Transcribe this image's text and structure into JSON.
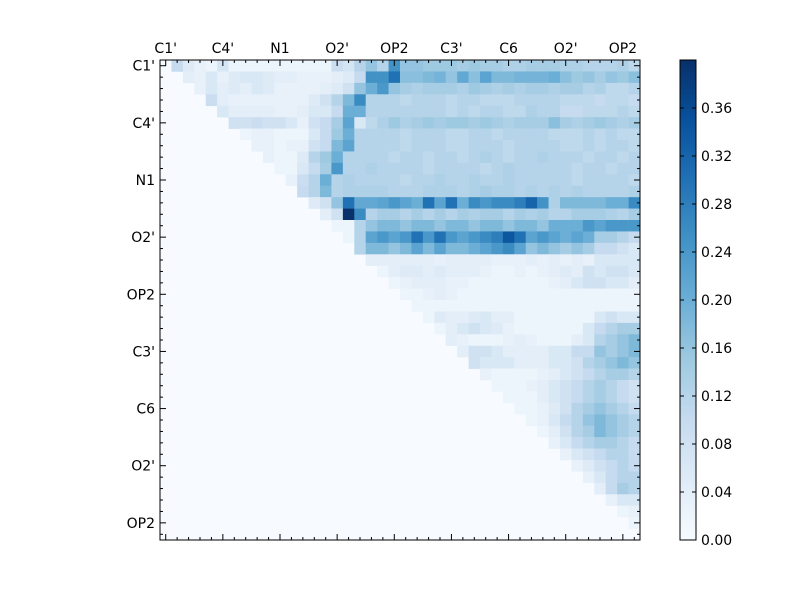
{
  "chart_data": {
    "type": "heatmap",
    "title": "",
    "xlabel": "",
    "ylabel": "",
    "n": 42,
    "x_tick_labels": [
      "C1'",
      "C4'",
      "N1",
      "O2'",
      "OP2",
      "C3'",
      "C6",
      "O2'",
      "OP2"
    ],
    "y_tick_labels": [
      "C1'",
      "C4'",
      "N1",
      "O2'",
      "OP2",
      "C3'",
      "C6",
      "O2'",
      "OP2"
    ],
    "major_tick_index": [
      0.5,
      5.5,
      10.5,
      15.5,
      20.5,
      25.5,
      30.5,
      35.5,
      40.5
    ],
    "x_ticks_position": "top",
    "colormap": "Blues",
    "colorbar": {
      "vmin": 0.0,
      "vmax": 0.4,
      "tick_labels": [
        "0.00",
        "0.04",
        "0.08",
        "0.12",
        "0.16",
        "0.20",
        "0.24",
        "0.28",
        "0.32",
        "0.36"
      ],
      "tick_values": [
        0.0,
        0.04,
        0.08,
        0.12,
        0.16,
        0.2,
        0.24,
        0.28,
        0.32,
        0.36
      ]
    },
    "values_note_unused": null,
    "cells": [
      [
        1,
        [
          0.1,
          0.05,
          0.03,
          0.02,
          0.07,
          0.02,
          0.02,
          0.02,
          0.02,
          0.02,
          0.02,
          0.02,
          0.02,
          0.02,
          0.09,
          0.07,
          0.12,
          0.16,
          0.12,
          0.25,
          0.16,
          0.16,
          0.15,
          0.15,
          0.15,
          0.14,
          0.15,
          0.14,
          0.14,
          0.13,
          0.13,
          0.14,
          0.14,
          0.14,
          0.13,
          0.13,
          0.12,
          0.12,
          0.12,
          0.13,
          0.11
        ]
      ],
      [
        2,
        [
          0.04,
          0.03,
          0.06,
          0.03,
          0.05,
          0.06,
          0.06,
          0.05,
          0.04,
          0.04,
          0.03,
          0.03,
          0.03,
          0.04,
          0.05,
          0.1,
          0.25,
          0.25,
          0.3,
          0.17,
          0.17,
          0.18,
          0.19,
          0.16,
          0.21,
          0.17,
          0.22,
          0.18,
          0.18,
          0.19,
          0.19,
          0.19,
          0.2,
          0.17,
          0.15,
          0.16,
          0.14,
          0.16,
          0.15,
          0.17,
          0.14
        ]
      ],
      [
        3,
        [
          0.03,
          0.06,
          0.04,
          0.05,
          0.04,
          0.06,
          0.05,
          0.03,
          0.03,
          0.03,
          0.03,
          0.04,
          0.05,
          0.08,
          0.16,
          0.2,
          0.24,
          0.16,
          0.14,
          0.13,
          0.14,
          0.14,
          0.14,
          0.13,
          0.15,
          0.14,
          0.13,
          0.14,
          0.13,
          0.14,
          0.14,
          0.13,
          0.14,
          0.14,
          0.12,
          0.13,
          0.11,
          0.11,
          0.12,
          0.12
        ]
      ],
      [
        4,
        [
          0.09,
          0.04,
          0.03,
          0.03,
          0.03,
          0.03,
          0.03,
          0.03,
          0.03,
          0.05,
          0.08,
          0.12,
          0.18,
          0.26,
          0.12,
          0.12,
          0.12,
          0.11,
          0.12,
          0.12,
          0.12,
          0.11,
          0.12,
          0.12,
          0.11,
          0.11,
          0.11,
          0.12,
          0.12,
          0.12,
          0.12,
          0.11,
          0.11,
          0.11,
          0.1,
          0.11,
          0.11,
          0.1,
          0.11
        ]
      ],
      [
        5,
        [
          0.06,
          0.04,
          0.04,
          0.04,
          0.04,
          0.03,
          0.03,
          0.04,
          0.06,
          0.06,
          0.1,
          0.2,
          0.2,
          0.12,
          0.12,
          0.12,
          0.12,
          0.12,
          0.12,
          0.12,
          0.11,
          0.12,
          0.11,
          0.12,
          0.12,
          0.11,
          0.11,
          0.13,
          0.12,
          0.12,
          0.1,
          0.1,
          0.11,
          0.11,
          0.11,
          0.12,
          0.11,
          0.12
        ]
      ],
      [
        6,
        [
          0.08,
          0.08,
          0.09,
          0.08,
          0.08,
          0.06,
          0.03,
          0.08,
          0.1,
          0.14,
          0.22,
          0.06,
          0.11,
          0.13,
          0.15,
          0.13,
          0.14,
          0.15,
          0.14,
          0.15,
          0.15,
          0.14,
          0.15,
          0.14,
          0.13,
          0.14,
          0.14,
          0.14,
          0.17,
          0.14,
          0.13,
          0.14,
          0.15,
          0.14,
          0.13,
          0.14,
          0.14
        ]
      ],
      [
        7,
        [
          0.02,
          0.03,
          0.03,
          0.02,
          0.02,
          0.02,
          0.06,
          0.1,
          0.15,
          0.2,
          0.12,
          0.12,
          0.12,
          0.12,
          0.11,
          0.12,
          0.12,
          0.12,
          0.11,
          0.11,
          0.12,
          0.12,
          0.11,
          0.12,
          0.12,
          0.12,
          0.12,
          0.11,
          0.11,
          0.11,
          0.12,
          0.11,
          0.12,
          0.11,
          0.11,
          0.12
        ]
      ],
      [
        8,
        [
          0.03,
          0.03,
          0.02,
          0.03,
          0.03,
          0.08,
          0.1,
          0.18,
          0.22,
          0.12,
          0.12,
          0.12,
          0.12,
          0.11,
          0.12,
          0.12,
          0.12,
          0.11,
          0.11,
          0.12,
          0.12,
          0.12,
          0.11,
          0.12,
          0.12,
          0.12,
          0.12,
          0.11,
          0.11,
          0.12,
          0.11,
          0.12,
          0.12,
          0.11,
          0.12
        ]
      ],
      [
        9,
        [
          0.03,
          0.02,
          0.02,
          0.05,
          0.12,
          0.15,
          0.2,
          0.12,
          0.12,
          0.12,
          0.12,
          0.11,
          0.12,
          0.12,
          0.11,
          0.12,
          0.12,
          0.11,
          0.12,
          0.13,
          0.12,
          0.11,
          0.12,
          0.12,
          0.13,
          0.12,
          0.12,
          0.12,
          0.11,
          0.12,
          0.12,
          0.11,
          0.12,
          0.12
        ]
      ],
      [
        10,
        [
          0.02,
          0.02,
          0.06,
          0.1,
          0.14,
          0.24,
          0.12,
          0.12,
          0.13,
          0.12,
          0.12,
          0.12,
          0.12,
          0.11,
          0.12,
          0.12,
          0.12,
          0.12,
          0.11,
          0.12,
          0.13,
          0.12,
          0.12,
          0.12,
          0.12,
          0.12,
          0.11,
          0.12,
          0.12,
          0.11,
          0.12,
          0.12,
          0.12
        ]
      ],
      [
        11,
        [
          0.03,
          0.09,
          0.12,
          0.2,
          0.12,
          0.13,
          0.12,
          0.12,
          0.12,
          0.12,
          0.11,
          0.12,
          0.12,
          0.13,
          0.12,
          0.12,
          0.13,
          0.12,
          0.12,
          0.13,
          0.12,
          0.12,
          0.12,
          0.12,
          0.12,
          0.11,
          0.12,
          0.12,
          0.12,
          0.12,
          0.11,
          0.12
        ]
      ],
      [
        12,
        [
          0.1,
          0.12,
          0.18,
          0.12,
          0.13,
          0.13,
          0.13,
          0.13,
          0.12,
          0.12,
          0.12,
          0.13,
          0.13,
          0.13,
          0.12,
          0.13,
          0.14,
          0.13,
          0.13,
          0.12,
          0.13,
          0.12,
          0.13,
          0.12,
          0.13,
          0.12,
          0.12,
          0.12,
          0.12,
          0.13,
          0.12
        ]
      ],
      [
        13,
        [
          0.05,
          0.08,
          0.16,
          0.3,
          0.21,
          0.21,
          0.22,
          0.24,
          0.22,
          0.2,
          0.3,
          0.22,
          0.3,
          0.2,
          0.26,
          0.24,
          0.26,
          0.26,
          0.28,
          0.32,
          0.25,
          0.13,
          0.18,
          0.18,
          0.18,
          0.18,
          0.2,
          0.2,
          0.26,
          0.3
        ]
      ],
      [
        14,
        [
          0.04,
          0.08,
          0.4,
          0.26,
          0.12,
          0.14,
          0.14,
          0.12,
          0.14,
          0.12,
          0.14,
          0.12,
          0.14,
          0.13,
          0.14,
          0.14,
          0.12,
          0.14,
          0.13,
          0.14,
          0.12,
          0.12,
          0.14,
          0.14,
          0.14,
          0.13,
          0.12,
          0.14,
          0.12
        ]
      ],
      [
        15,
        [
          0.02,
          0.02,
          0.12,
          0.16,
          0.18,
          0.18,
          0.16,
          0.18,
          0.18,
          0.16,
          0.18,
          0.18,
          0.16,
          0.18,
          0.18,
          0.16,
          0.18,
          0.18,
          0.16,
          0.2,
          0.2,
          0.2,
          0.24,
          0.22,
          0.24,
          0.24,
          0.24,
          0.24
        ]
      ],
      [
        16,
        [
          0.02,
          0.12,
          0.22,
          0.24,
          0.22,
          0.24,
          0.3,
          0.24,
          0.3,
          0.24,
          0.22,
          0.24,
          0.26,
          0.28,
          0.34,
          0.3,
          0.22,
          0.24,
          0.22,
          0.2,
          0.22,
          0.2,
          0.14,
          0.14,
          0.12,
          0.1,
          0.08
        ]
      ],
      [
        17,
        [
          0.12,
          0.18,
          0.18,
          0.16,
          0.18,
          0.22,
          0.18,
          0.22,
          0.18,
          0.18,
          0.2,
          0.22,
          0.24,
          0.26,
          0.22,
          0.16,
          0.18,
          0.16,
          0.14,
          0.16,
          0.14,
          0.1,
          0.1,
          0.08,
          0.06,
          0.04
        ]
      ],
      [
        18,
        [
          0.04,
          0.04,
          0.04,
          0.04,
          0.04,
          0.04,
          0.03,
          0.04,
          0.04,
          0.04,
          0.04,
          0.03,
          0.03,
          0.03,
          0.04,
          0.03,
          0.04,
          0.03,
          0.04,
          0.03,
          0.06,
          0.06,
          0.06,
          0.06,
          0.04
        ]
      ],
      [
        19,
        [
          0.02,
          0.04,
          0.05,
          0.05,
          0.04,
          0.05,
          0.04,
          0.04,
          0.04,
          0.03,
          0.02,
          0.02,
          0.03,
          0.02,
          0.03,
          0.04,
          0.05,
          0.04,
          0.08,
          0.06,
          0.08,
          0.08,
          0.06,
          0.04
        ]
      ],
      [
        20,
        [
          0.02,
          0.03,
          0.04,
          0.04,
          0.04,
          0.03,
          0.03,
          0.02,
          0.02,
          0.02,
          0.02,
          0.02,
          0.02,
          0.02,
          0.03,
          0.04,
          0.06,
          0.08,
          0.08,
          0.06,
          0.06,
          0.04,
          0.04
        ]
      ],
      [
        21,
        [
          0.02,
          0.02,
          0.03,
          0.04,
          0.03,
          0.02,
          0.02,
          0.02,
          0.02,
          0.02,
          0.02,
          0.02,
          0.02,
          0.02,
          0.02,
          0.02,
          0.02,
          0.02,
          0.02,
          0.02,
          0.02,
          0.02
        ]
      ],
      [
        22,
        [
          0.02,
          0.02,
          0.02,
          0.02,
          0.02,
          0.02,
          0.02,
          0.02,
          0.02,
          0.02,
          0.02,
          0.02,
          0.02,
          0.02,
          0.02,
          0.02,
          0.02,
          0.02,
          0.02,
          0.02,
          0.02
        ]
      ],
      [
        23,
        [
          0.02,
          0.05,
          0.04,
          0.04,
          0.05,
          0.06,
          0.04,
          0.04,
          0.02,
          0.02,
          0.02,
          0.02,
          0.02,
          0.02,
          0.02,
          0.06,
          0.08,
          0.06,
          0.06,
          0.06
        ]
      ],
      [
        24,
        [
          0.02,
          0.04,
          0.06,
          0.08,
          0.06,
          0.05,
          0.03,
          0.02,
          0.02,
          0.02,
          0.02,
          0.02,
          0.02,
          0.06,
          0.1,
          0.12,
          0.14,
          0.14,
          0.1
        ]
      ],
      [
        25,
        [
          0.04,
          0.03,
          0.02,
          0.02,
          0.02,
          0.03,
          0.04,
          0.03,
          0.02,
          0.02,
          0.02,
          0.04,
          0.06,
          0.12,
          0.14,
          0.16,
          0.18,
          0.14
        ]
      ],
      [
        26,
        [
          0.04,
          0.08,
          0.08,
          0.06,
          0.04,
          0.04,
          0.04,
          0.04,
          0.06,
          0.06,
          0.1,
          0.1,
          0.16,
          0.14,
          0.16,
          0.18,
          0.16
        ]
      ],
      [
        27,
        [
          0.08,
          0.06,
          0.06,
          0.06,
          0.04,
          0.04,
          0.04,
          0.06,
          0.06,
          0.08,
          0.12,
          0.14,
          0.16,
          0.18,
          0.16,
          0.14
        ]
      ],
      [
        28,
        [
          0.03,
          0.02,
          0.02,
          0.02,
          0.02,
          0.03,
          0.04,
          0.06,
          0.08,
          0.1,
          0.12,
          0.14,
          0.14,
          0.12,
          0.1
        ]
      ],
      [
        29,
        [
          0.02,
          0.02,
          0.02,
          0.03,
          0.04,
          0.06,
          0.08,
          0.1,
          0.12,
          0.14,
          0.12,
          0.1,
          0.08,
          0.06
        ]
      ],
      [
        30,
        [
          0.02,
          0.02,
          0.02,
          0.04,
          0.06,
          0.08,
          0.1,
          0.12,
          0.14,
          0.12,
          0.1,
          0.08,
          0.06
        ]
      ],
      [
        31,
        [
          0.02,
          0.02,
          0.03,
          0.05,
          0.08,
          0.12,
          0.14,
          0.16,
          0.14,
          0.12,
          0.1,
          0.08
        ]
      ],
      [
        32,
        [
          0.02,
          0.03,
          0.06,
          0.1,
          0.12,
          0.16,
          0.18,
          0.16,
          0.14,
          0.12,
          0.1
        ]
      ],
      [
        33,
        [
          0.02,
          0.04,
          0.08,
          0.12,
          0.14,
          0.18,
          0.16,
          0.14,
          0.12,
          0.1
        ]
      ],
      [
        34,
        [
          0.03,
          0.06,
          0.1,
          0.12,
          0.14,
          0.14,
          0.12,
          0.1,
          0.08
        ]
      ],
      [
        35,
        [
          0.03,
          0.06,
          0.08,
          0.1,
          0.12,
          0.12,
          0.1,
          0.08
        ]
      ],
      [
        36,
        [
          0.03,
          0.05,
          0.08,
          0.1,
          0.12,
          0.1,
          0.08
        ]
      ],
      [
        37,
        [
          0.03,
          0.06,
          0.1,
          0.12,
          0.12,
          0.1
        ]
      ],
      [
        38,
        [
          0.04,
          0.1,
          0.14,
          0.12,
          0.1
        ]
      ],
      [
        39,
        [
          0.03,
          0.06,
          0.06,
          0.04
        ]
      ],
      [
        40,
        [
          0.02,
          0.03,
          0.02
        ]
      ],
      [
        41,
        [
          0.02,
          0.02
        ]
      ]
    ]
  }
}
